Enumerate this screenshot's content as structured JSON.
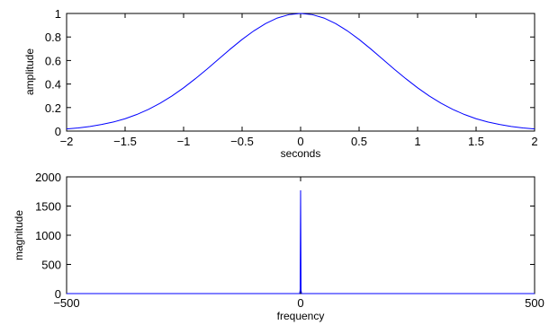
{
  "chart_data": [
    {
      "type": "line",
      "title": "",
      "xlabel": "seconds",
      "ylabel": "amplitude",
      "xlim": [
        -2,
        2
      ],
      "ylim": [
        0,
        1
      ],
      "xticks": [
        -2,
        -1.5,
        -1,
        -0.5,
        0,
        0.5,
        1,
        1.5,
        2
      ],
      "xtick_labels": [
        "−2",
        "−1.5",
        "−1",
        "−0.5",
        "0",
        "0.5",
        "1",
        "1.5",
        "2"
      ],
      "yticks": [
        0,
        0.2,
        0.4,
        0.6,
        0.8,
        1
      ],
      "ytick_labels": [
        "0",
        "0.2",
        "0.4",
        "0.6",
        "0.8",
        "1"
      ],
      "grid": false,
      "color": "#0000ff",
      "series": [
        {
          "x": [
            -2,
            -1.9,
            -1.8,
            -1.7,
            -1.6,
            -1.5,
            -1.4,
            -1.3,
            -1.2,
            -1.1,
            -1,
            -0.9,
            -0.8,
            -0.7,
            -0.6,
            -0.5,
            -0.4,
            -0.3,
            -0.2,
            -0.1,
            0,
            0.1,
            0.2,
            0.3,
            0.4,
            0.5,
            0.6,
            0.7,
            0.8,
            0.9,
            1,
            1.1,
            1.2,
            1.3,
            1.4,
            1.5,
            1.6,
            1.7,
            1.8,
            1.9,
            2
          ],
          "y": [
            0.018,
            0.027,
            0.039,
            0.056,
            0.077,
            0.105,
            0.141,
            0.185,
            0.237,
            0.298,
            0.368,
            0.445,
            0.527,
            0.613,
            0.698,
            0.779,
            0.852,
            0.914,
            0.961,
            0.99,
            1.0,
            0.99,
            0.961,
            0.914,
            0.852,
            0.779,
            0.698,
            0.613,
            0.527,
            0.445,
            0.368,
            0.298,
            0.237,
            0.185,
            0.141,
            0.105,
            0.077,
            0.056,
            0.039,
            0.027,
            0.018
          ]
        }
      ]
    },
    {
      "type": "line",
      "title": "",
      "xlabel": "frequency",
      "ylabel": "magnitude",
      "xlim": [
        -500,
        500
      ],
      "ylim": [
        0,
        2000
      ],
      "xticks": [
        -500,
        0,
        500
      ],
      "xtick_labels": [
        "−500",
        "0",
        "500"
      ],
      "yticks": [
        0,
        500,
        1000,
        1500,
        2000
      ],
      "ytick_labels": [
        "0",
        "500",
        "1000",
        "1500",
        "2000"
      ],
      "grid": false,
      "color": "#0000ff",
      "series": [
        {
          "x": [
            -500,
            -3,
            -2,
            -1,
            0,
            1,
            2,
            3,
            500
          ],
          "y": [
            0,
            0,
            2,
            60,
            1770,
            60,
            2,
            0,
            0
          ]
        }
      ]
    }
  ]
}
